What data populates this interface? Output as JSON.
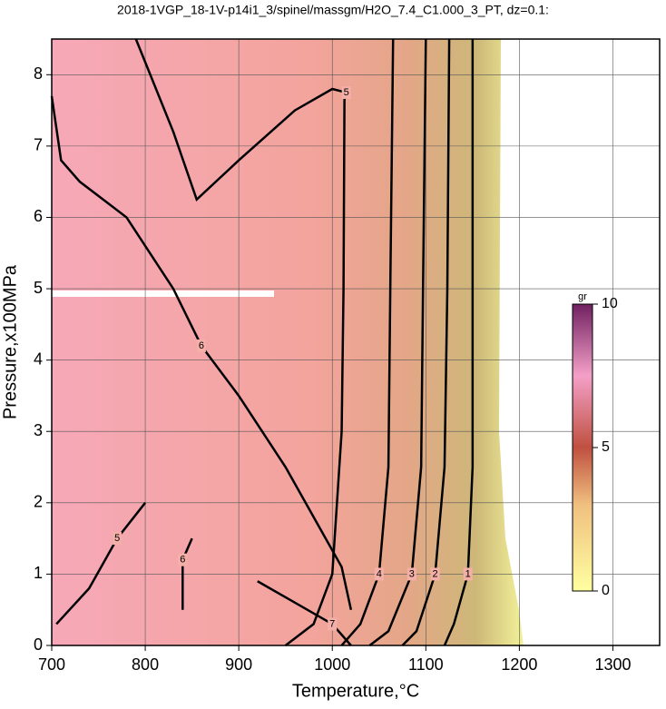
{
  "chart_data": {
    "type": "contour",
    "title": "2018-1VGP_18-1V-p14i1_3/spinel/massgm/H2O_7.4_C1.000_3_PT, dz=0.1:",
    "xlabel": "Temperature,°C",
    "ylabel": "Pressure,x100MPa",
    "xlim": [
      700,
      1350
    ],
    "xticks": [
      700,
      800,
      900,
      1000,
      1100,
      1200,
      1300
    ],
    "ylim": [
      0,
      8.5
    ],
    "yticks": [
      0,
      1,
      2,
      3,
      4,
      5,
      6,
      7,
      8
    ],
    "grid": true,
    "line_color": "#000000",
    "contours": [
      {
        "level": 1,
        "x": [
          1150,
          1150,
          1150,
          1145,
          1130,
          1120
        ],
        "y": [
          8.5,
          5,
          2.5,
          1,
          0.3,
          0
        ]
      },
      {
        "level": 2,
        "x": [
          1125,
          1123,
          1120,
          1110,
          1090,
          1075
        ],
        "y": [
          8.5,
          5,
          2.5,
          1,
          0.2,
          0
        ]
      },
      {
        "level": 3,
        "x": [
          1100,
          1097,
          1095,
          1085,
          1060,
          1040
        ],
        "y": [
          8.5,
          5,
          2.5,
          1,
          0.2,
          0
        ]
      },
      {
        "level": 4,
        "x": [
          1065,
          1062,
          1060,
          1050,
          1030,
          1010
        ],
        "y": [
          8.5,
          5,
          2.5,
          1,
          0.3,
          0
        ]
      },
      {
        "level": 5,
        "x": [
          790,
          830,
          855,
          900,
          960,
          1000,
          1015,
          1013,
          1012,
          1010,
          1000,
          980,
          950
        ],
        "y": [
          8.5,
          7.2,
          6.25,
          6.8,
          7.5,
          7.8,
          7.75,
          7.65,
          5,
          3,
          1,
          0.3,
          0
        ]
      },
      {
        "level": 6,
        "x": [
          700,
          710,
          730,
          780,
          830,
          860,
          900,
          950,
          980,
          1010,
          1020
        ],
        "y": [
          7.7,
          6.8,
          6.5,
          6.0,
          5.0,
          4.2,
          3.5,
          2.5,
          1.8,
          1.1,
          0.5
        ]
      },
      {
        "level": 7,
        "x": [
          920,
          960,
          1000,
          1020
        ],
        "y": [
          0.9,
          0.6,
          0.3,
          0
        ]
      },
      {
        "level": 5,
        "x": [
          705,
          740,
          770,
          800
        ],
        "y": [
          0.3,
          0.8,
          1.5,
          2.0
        ]
      },
      {
        "level": 6,
        "x": [
          840,
          840,
          850
        ],
        "y": [
          0.5,
          1.2,
          1.5
        ]
      }
    ],
    "colorbar": {
      "label": "gr",
      "lim": [
        0,
        10
      ],
      "ticks": [
        0,
        5,
        10
      ]
    }
  }
}
